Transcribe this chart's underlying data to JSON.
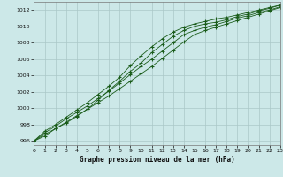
{
  "title": "Graphe pression niveau de la mer (hPa)",
  "bg_color": "#cce8e8",
  "grid_color": "#aac8c8",
  "line_color": "#1a5c1a",
  "xlim": [
    0,
    23
  ],
  "ylim": [
    995.5,
    1013
  ],
  "yticks": [
    996,
    998,
    1000,
    1002,
    1004,
    1006,
    1008,
    1010,
    1012
  ],
  "xticks": [
    0,
    1,
    2,
    3,
    4,
    5,
    6,
    7,
    8,
    9,
    10,
    11,
    12,
    13,
    14,
    15,
    16,
    17,
    18,
    19,
    20,
    21,
    22,
    23
  ],
  "series": [
    [
      996.0,
      996.6,
      997.5,
      998.2,
      999.0,
      999.9,
      1001.0,
      1002.2,
      1003.3,
      1004.5,
      1005.5,
      1006.8,
      1007.8,
      1008.8,
      1009.5,
      1010.0,
      1010.3,
      1010.5,
      1010.8,
      1011.2,
      1011.5,
      1011.9,
      1012.2,
      1012.6
    ],
    [
      996.0,
      997.2,
      998.0,
      998.9,
      999.8,
      1000.7,
      1001.7,
      1002.7,
      1003.8,
      1005.2,
      1006.4,
      1007.5,
      1008.5,
      1009.3,
      1009.9,
      1010.3,
      1010.6,
      1010.9,
      1011.1,
      1011.4,
      1011.7,
      1012.0,
      1012.3,
      1012.6
    ],
    [
      996.0,
      997.0,
      997.8,
      998.7,
      999.5,
      1000.3,
      1001.2,
      1002.1,
      1003.1,
      1004.1,
      1005.1,
      1006.0,
      1007.0,
      1008.0,
      1009.0,
      1009.5,
      1009.9,
      1010.2,
      1010.6,
      1011.0,
      1011.3,
      1011.7,
      1012.0,
      1012.4
    ],
    [
      996.0,
      996.8,
      997.5,
      998.3,
      999.1,
      999.9,
      1000.7,
      1001.5,
      1002.4,
      1003.3,
      1004.2,
      1005.1,
      1006.1,
      1007.1,
      1008.1,
      1009.0,
      1009.5,
      1009.9,
      1010.3,
      1010.7,
      1011.1,
      1011.5,
      1011.9,
      1012.3
    ]
  ]
}
